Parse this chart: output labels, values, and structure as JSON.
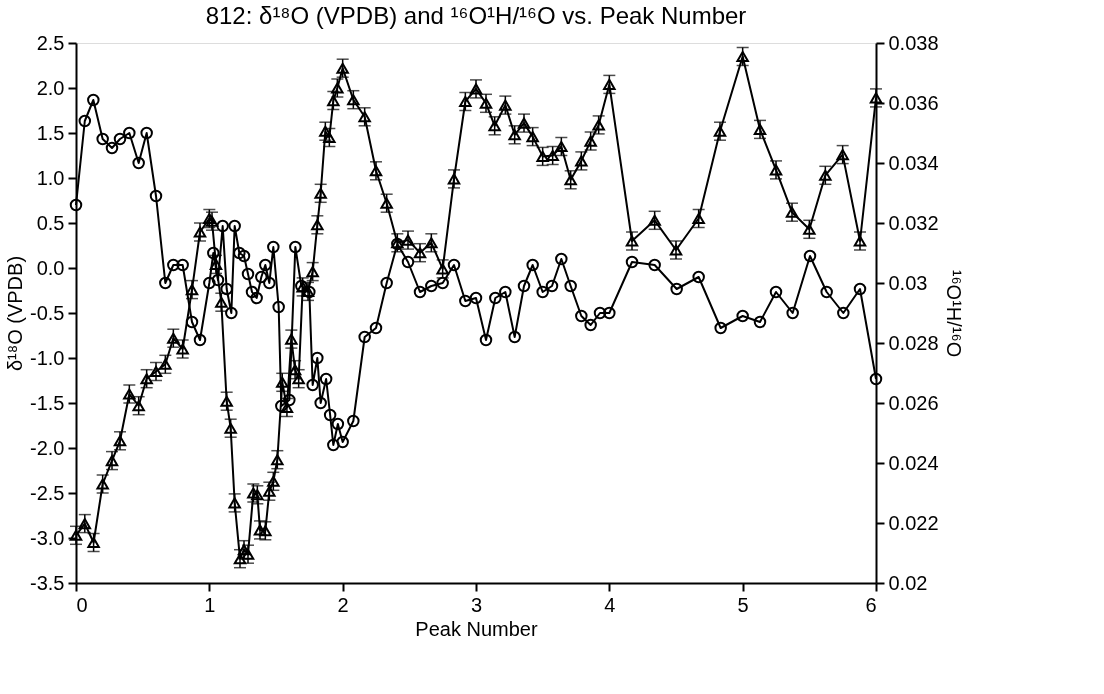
{
  "chart_data": {
    "type": "line",
    "title": "812: δ¹⁸O (VPDB) and ¹⁶O¹H/¹⁶O vs. Peak Number",
    "xlabel": "Peak Number",
    "ylabel": "δ¹⁸O (VPDB)",
    "y2label": "¹⁶O¹H/¹⁶O",
    "xlim": [
      0,
      6
    ],
    "xticks": [
      0,
      1,
      2,
      3,
      4,
      5,
      6
    ],
    "ylim": [
      -3.5,
      2.5
    ],
    "yticks": [
      {
        "value": -3.5,
        "label": "-3.5"
      },
      {
        "value": -3,
        "label": "-3.0"
      },
      {
        "value": -2.5,
        "label": "-2.5"
      },
      {
        "value": -2,
        "label": "-2.0"
      },
      {
        "value": -1.5,
        "label": "-1.5"
      },
      {
        "value": -1,
        "label": "-1.0"
      },
      {
        "value": -0.5,
        "label": "-0.5"
      },
      {
        "value": 0,
        "label": "0.0"
      },
      {
        "value": 0.5,
        "label": "0.5"
      },
      {
        "value": 1,
        "label": "1.0"
      },
      {
        "value": 1.5,
        "label": "1.5"
      },
      {
        "value": 2,
        "label": "2.0"
      },
      {
        "value": 2.5,
        "label": "2.5"
      }
    ],
    "y2lim": [
      0.02,
      0.038
    ],
    "y2ticks": [
      0.02,
      0.022,
      0.024,
      0.026,
      0.028,
      0.03,
      0.032,
      0.034,
      0.036,
      0.038
    ],
    "grid": false,
    "line_style": "solid",
    "series": [
      {
        "color": "#000000",
        "marker": "triangle",
        "x": [
          0,
          0.066,
          0.132,
          0.2,
          0.27,
          0.33,
          0.4,
          0.47,
          0.53,
          0.6,
          0.67,
          0.73,
          0.8,
          0.87,
          0.93,
          1.0,
          1.02,
          1.05,
          1.09,
          1.13,
          1.16,
          1.19,
          1.23,
          1.26,
          1.29,
          1.33,
          1.36,
          1.38,
          1.42,
          1.45,
          1.48,
          1.51,
          1.547,
          1.582,
          1.615,
          1.643,
          1.67,
          1.7,
          1.74,
          1.775,
          1.81,
          1.835,
          1.87,
          1.9,
          1.93,
          1.96,
          2.0,
          2.08,
          2.165,
          2.25,
          2.33,
          2.41,
          2.49,
          2.58,
          2.665,
          2.75,
          2.835,
          2.92,
          3.0,
          3.075,
          3.14,
          3.22,
          3.29,
          3.36,
          3.425,
          3.5,
          3.575,
          3.64,
          3.71,
          3.79,
          3.86,
          3.92,
          4.0,
          4.17,
          4.34,
          4.5,
          4.67,
          4.83,
          5.0,
          5.13,
          5.25,
          5.37,
          5.5,
          5.62,
          5.75,
          5.88,
          6.0
        ],
        "values": [
          -2.97,
          -2.84,
          -3.05,
          -2.4,
          -2.14,
          -1.92,
          -1.4,
          -1.53,
          -1.23,
          -1.15,
          -1.07,
          -0.78,
          -0.9,
          -0.24,
          0.4,
          0.55,
          0.52,
          0.04,
          -0.38,
          -1.48,
          -1.78,
          -2.61,
          -3.23,
          -3.13,
          -3.18,
          -2.5,
          -2.52,
          -2.91,
          -2.92,
          -2.48,
          -2.37,
          -2.13,
          -1.27,
          -1.55,
          -0.79,
          -1.13,
          -1.23,
          -0.21,
          -0.26,
          -0.04,
          0.48,
          0.83,
          1.52,
          1.45,
          1.86,
          2.0,
          2.22,
          1.87,
          1.68,
          1.08,
          0.72,
          0.28,
          0.31,
          0.17,
          0.28,
          -0.01,
          0.99,
          1.85,
          1.99,
          1.83,
          1.58,
          1.81,
          1.48,
          1.61,
          1.46,
          1.24,
          1.25,
          1.35,
          0.98,
          1.19,
          1.41,
          1.59,
          2.04,
          0.3,
          0.53,
          0.2,
          0.55,
          1.52,
          2.35,
          1.54,
          1.09,
          0.62,
          0.43,
          1.03,
          1.26,
          0.3,
          1.89
        ],
        "errors": [
          0.1,
          0.1,
          0.1,
          0.1,
          0.1,
          0.1,
          0.1,
          0.1,
          0.1,
          0.1,
          0.1,
          0.1,
          0.1,
          0.1,
          0.1,
          0.1,
          0.1,
          0.1,
          0.1,
          0.1,
          0.1,
          0.1,
          0.1,
          0.1,
          0.1,
          0.1,
          0.1,
          0.1,
          0.1,
          0.1,
          0.1,
          0.1,
          0.1,
          0.1,
          0.1,
          0.1,
          0.1,
          0.1,
          0.1,
          0.1,
          0.1,
          0.1,
          0.1,
          0.1,
          0.1,
          0.1,
          0.1,
          0.1,
          0.1,
          0.1,
          0.1,
          0.1,
          0.1,
          0.1,
          0.1,
          0.1,
          0.1,
          0.1,
          0.1,
          0.1,
          0.1,
          0.1,
          0.1,
          0.1,
          0.1,
          0.1,
          0.1,
          0.1,
          0.1,
          0.1,
          0.1,
          0.1,
          0.1,
          0.1,
          0.1,
          0.1,
          0.1,
          0.1,
          0.1,
          0.1,
          0.1,
          0.1,
          0.1,
          0.1,
          0.1,
          0.1,
          0.1
        ]
      },
      {
        "color": "#000000",
        "marker": "circle",
        "axis": "y2",
        "x": [
          0,
          0.066,
          0.13,
          0.2,
          0.27,
          0.33,
          0.4,
          0.47,
          0.53,
          0.6,
          0.67,
          0.73,
          0.8,
          0.87,
          0.93,
          1.0,
          1.03,
          1.065,
          1.1,
          1.13,
          1.165,
          1.19,
          1.225,
          1.26,
          1.29,
          1.32,
          1.355,
          1.39,
          1.42,
          1.45,
          1.48,
          1.52,
          1.54,
          1.6,
          1.645,
          1.69,
          1.75,
          1.775,
          1.81,
          1.835,
          1.876,
          1.906,
          1.93,
          1.964,
          2.0,
          2.08,
          2.165,
          2.25,
          2.33,
          2.41,
          2.49,
          2.58,
          2.665,
          2.75,
          2.835,
          2.92,
          3.0,
          3.075,
          3.145,
          3.22,
          3.29,
          3.36,
          3.425,
          3.5,
          3.57,
          3.64,
          3.71,
          3.79,
          3.86,
          3.93,
          4.0,
          4.17,
          4.34,
          4.505,
          4.67,
          4.835,
          5.0,
          5.13,
          5.25,
          5.375,
          5.505,
          5.63,
          5.755,
          5.88,
          6.0
        ],
        "values": [
          0.0326,
          0.0354,
          0.0361,
          0.0348,
          0.0345,
          0.0348,
          0.035,
          0.034,
          0.035,
          0.0329,
          0.03,
          0.0306,
          0.0306,
          0.0287,
          0.0281,
          0.03,
          0.031,
          0.0301,
          0.0319,
          0.0298,
          0.029,
          0.0319,
          0.031,
          0.0309,
          0.0303,
          0.0297,
          0.0295,
          0.0302,
          0.0306,
          0.03,
          0.0312,
          0.0292,
          0.0259,
          0.0261,
          0.0312,
          0.0299,
          0.0297,
          0.0266,
          0.0275,
          0.026,
          0.0268,
          0.0256,
          0.0246,
          0.0253,
          0.0247,
          0.0254,
          0.0282,
          0.0285,
          0.03,
          0.0313,
          0.0307,
          0.0297,
          0.0299,
          0.03,
          0.0306,
          0.0294,
          0.0295,
          0.0281,
          0.0295,
          0.0297,
          0.0282,
          0.0299,
          0.0306,
          0.0297,
          0.0299,
          0.0308,
          0.0299,
          0.0289,
          0.0286,
          0.029,
          0.029,
          0.0307,
          0.0306,
          0.0298,
          0.0302,
          0.0285,
          0.0289,
          0.0287,
          0.0297,
          0.029,
          0.0309,
          0.0297,
          0.029,
          0.0298,
          0.0268
        ]
      }
    ]
  }
}
